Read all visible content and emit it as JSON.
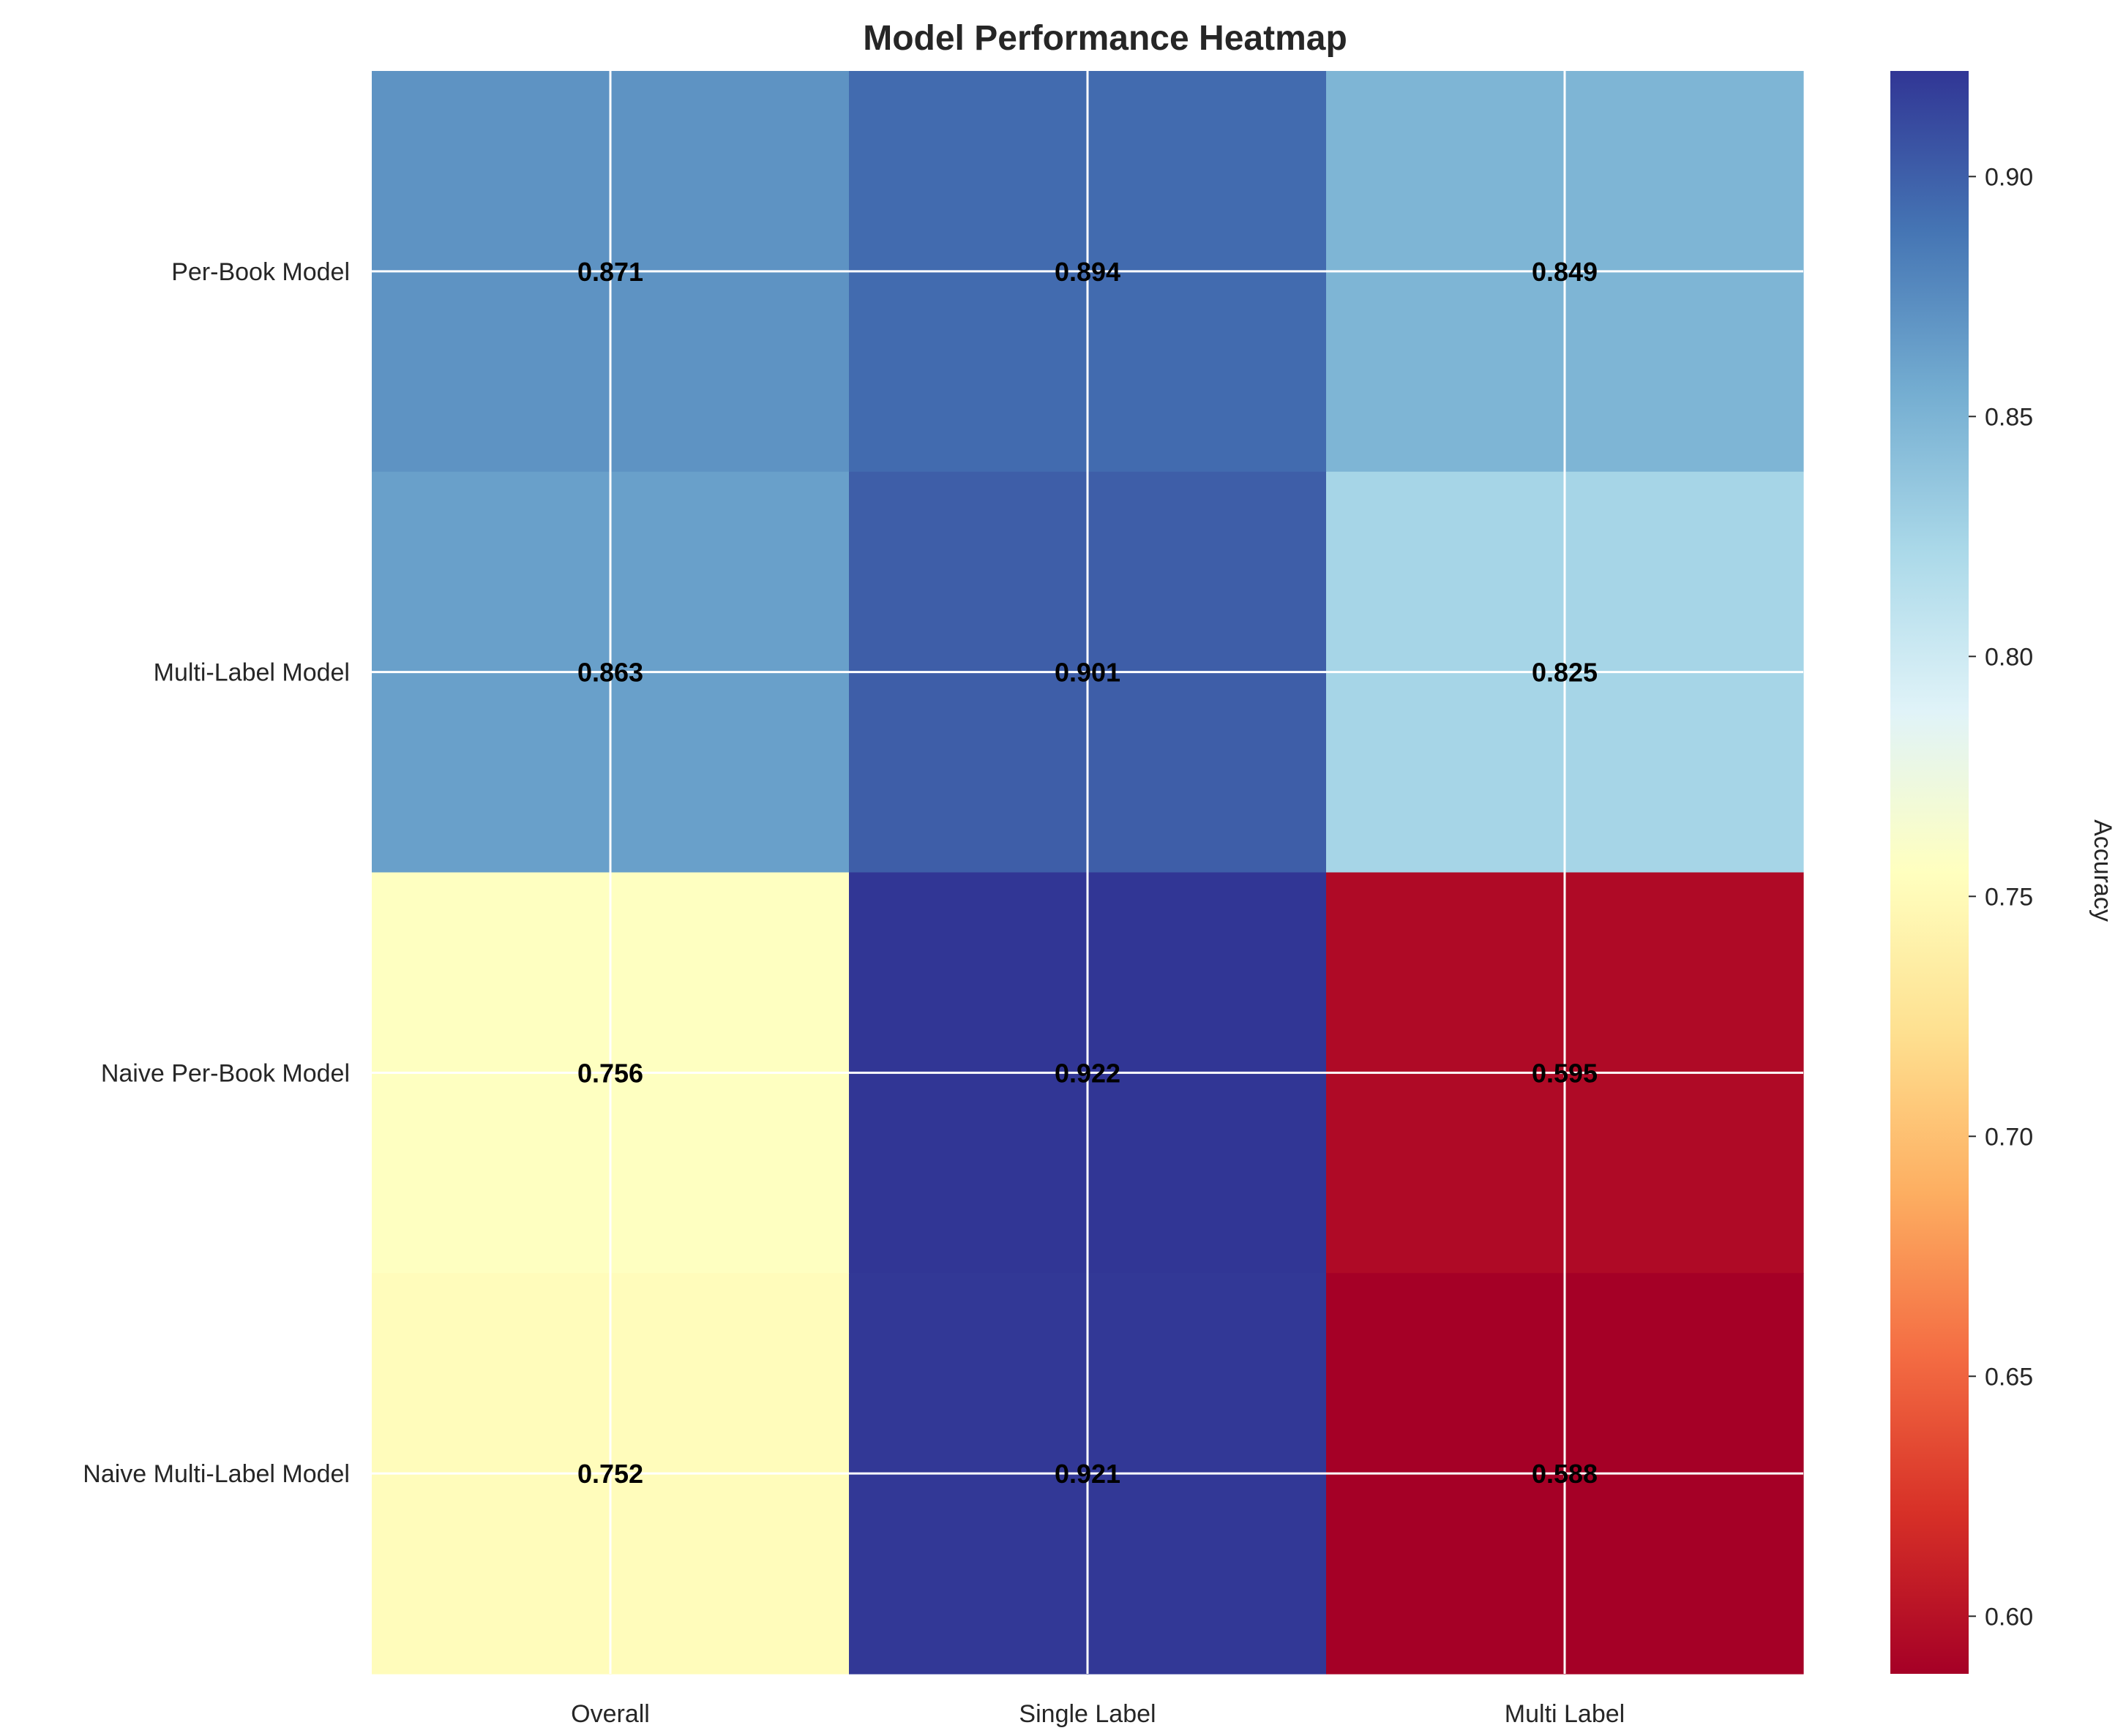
{
  "chart_data": {
    "type": "heatmap",
    "title": "Model Performance Heatmap",
    "rows": [
      "Per-Book Model",
      "Multi-Label Model",
      "Naive Per-Book Model",
      "Naive Multi-Label Model"
    ],
    "columns": [
      "Overall",
      "Single Label",
      "Multi Label"
    ],
    "values": [
      [
        0.871,
        0.894,
        0.849
      ],
      [
        0.863,
        0.901,
        0.825
      ],
      [
        0.756,
        0.922,
        0.595
      ],
      [
        0.752,
        0.921,
        0.588
      ]
    ],
    "value_labels": [
      [
        "0.871",
        "0.894",
        "0.849"
      ],
      [
        "0.863",
        "0.901",
        "0.825"
      ],
      [
        "0.756",
        "0.922",
        "0.595"
      ],
      [
        "0.752",
        "0.921",
        "0.588"
      ]
    ],
    "colorbar": {
      "label": "Accuracy",
      "colormap": "RdYlBu",
      "vmin": 0.588,
      "vmax": 0.922,
      "ticks": [
        "0.60",
        "0.65",
        "0.70",
        "0.75",
        "0.80",
        "0.85",
        "0.90"
      ]
    },
    "grid": true
  }
}
